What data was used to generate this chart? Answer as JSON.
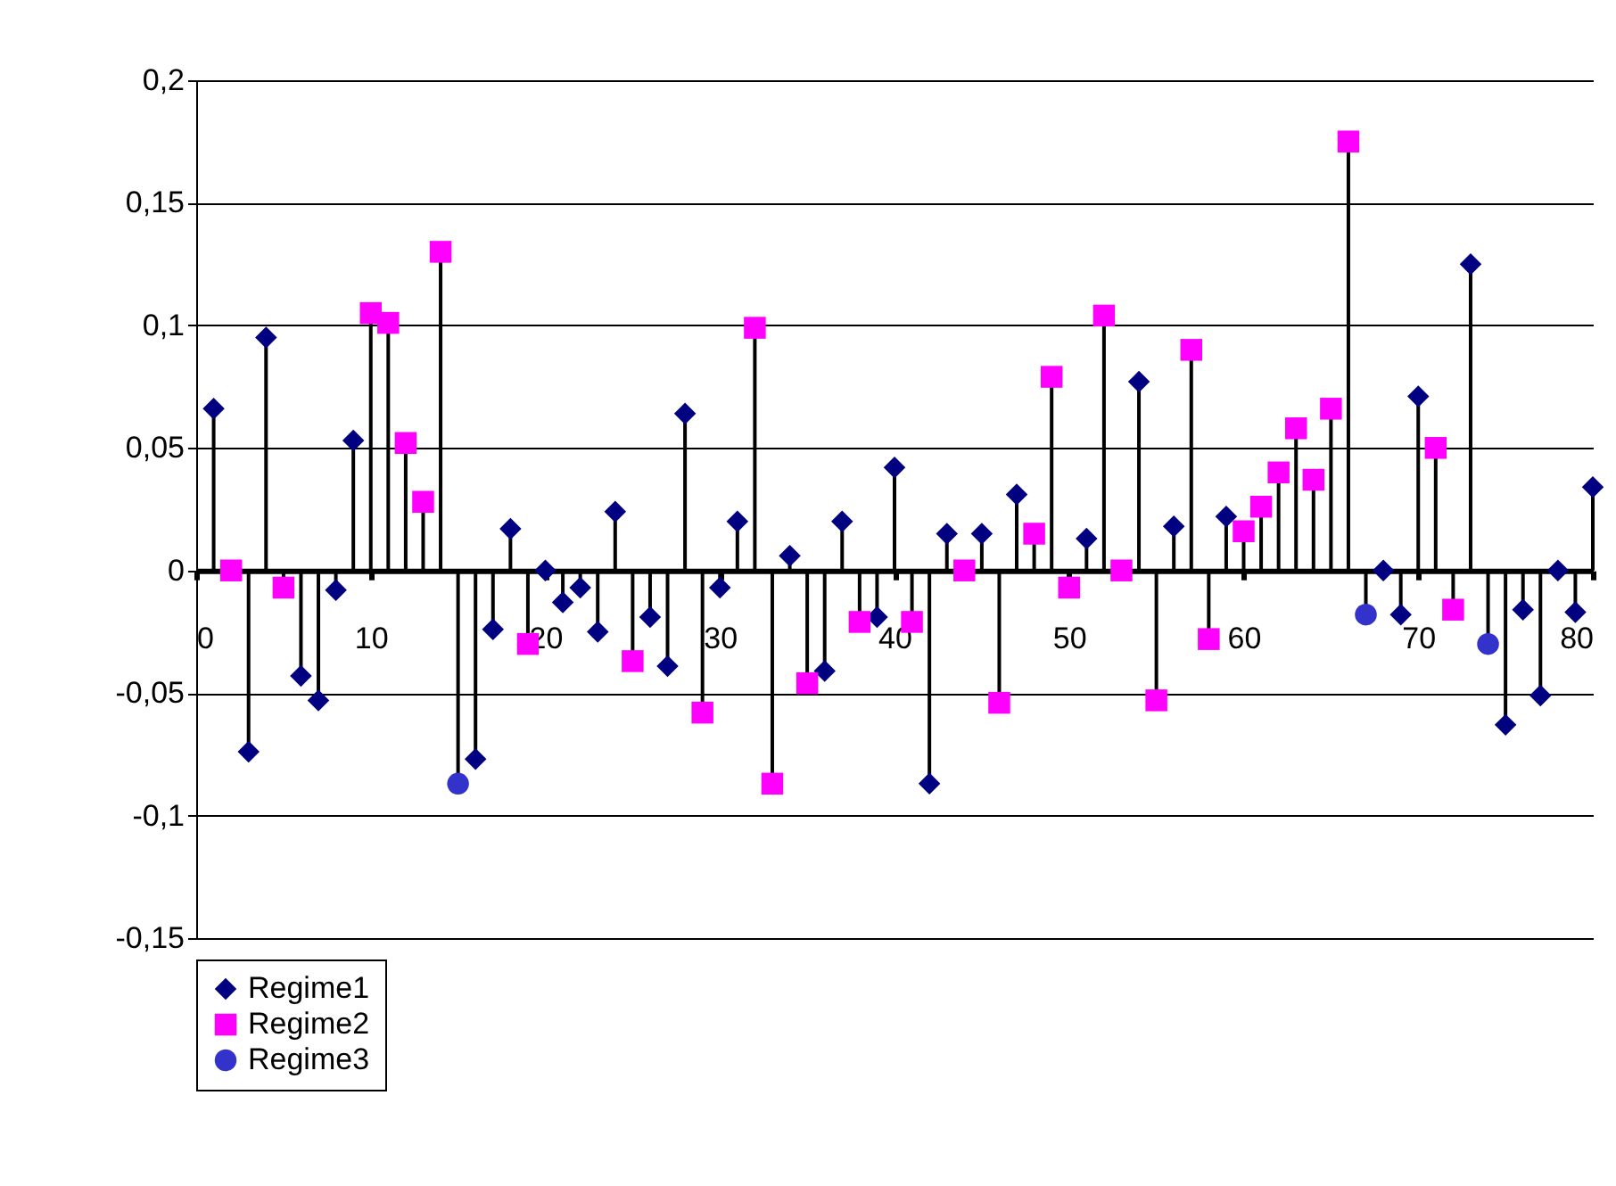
{
  "chart_data": {
    "type": "lollipop",
    "xlim": [
      0,
      80
    ],
    "xticks": [
      0,
      10,
      20,
      30,
      40,
      50,
      60,
      70,
      80
    ],
    "ylim": [
      -0.15,
      0.2
    ],
    "yticks": [
      {
        "value": -0.15,
        "label": "-0,15"
      },
      {
        "value": -0.1,
        "label": "-0,1"
      },
      {
        "value": -0.05,
        "label": "-0,05"
      },
      {
        "value": 0,
        "label": "0"
      },
      {
        "value": 0.05,
        "label": "0,05"
      },
      {
        "value": 0.1,
        "label": "0,1"
      },
      {
        "value": 0.15,
        "label": "0,15"
      },
      {
        "value": 0.2,
        "label": "0,2"
      }
    ],
    "grid": "y",
    "legend": "bottom",
    "series": [
      {
        "name": "Regime1",
        "color": "#000080",
        "marker": "diamond",
        "x": [
          1,
          3,
          4,
          6,
          7,
          8,
          9,
          16,
          17,
          18,
          20,
          21,
          22,
          23,
          24,
          26,
          27,
          28,
          30,
          31,
          34,
          36,
          37,
          39,
          40,
          42,
          43,
          45,
          47,
          51,
          54,
          56,
          59,
          68,
          69,
          70,
          73,
          75,
          76,
          77,
          78,
          79,
          80
        ],
        "values": [
          0.066,
          -0.074,
          0.095,
          -0.043,
          -0.053,
          -0.008,
          0.053,
          -0.077,
          -0.024,
          0.017,
          0,
          -0.013,
          -0.007,
          -0.025,
          0.024,
          -0.019,
          -0.039,
          0.064,
          -0.007,
          0.02,
          0.006,
          -0.041,
          0.02,
          -0.019,
          0.042,
          -0.087,
          0.015,
          0.015,
          0.031,
          0.013,
          0.077,
          0.018,
          0.022,
          0,
          -0.018,
          0.071,
          0.125,
          -0.063,
          -0.016,
          -0.051,
          0,
          -0.017,
          0.034
        ]
      },
      {
        "name": "Regime2",
        "color": "#ff00ff",
        "marker": "square",
        "x": [
          2,
          5,
          10,
          11,
          12,
          13,
          14,
          19,
          25,
          29,
          32,
          33,
          35,
          38,
          41,
          44,
          46,
          48,
          49,
          50,
          52,
          53,
          55,
          57,
          58,
          60,
          61,
          62,
          63,
          64,
          65,
          66,
          71,
          72
        ],
        "values": [
          0,
          -0.007,
          0.105,
          0.101,
          0.052,
          0.028,
          0.13,
          -0.03,
          -0.037,
          -0.058,
          0.099,
          -0.087,
          -0.046,
          -0.021,
          -0.021,
          0,
          -0.054,
          0.015,
          0.079,
          -0.007,
          0.104,
          0,
          -0.053,
          0.09,
          -0.028,
          0.016,
          0.026,
          0.04,
          0.058,
          0.037,
          0.066,
          0.175,
          0.05,
          -0.016
        ]
      },
      {
        "name": "Regime3",
        "color": "#3333cc",
        "marker": "circle",
        "x": [
          15,
          67,
          74
        ],
        "values": [
          -0.087,
          -0.018,
          -0.03
        ]
      }
    ]
  }
}
